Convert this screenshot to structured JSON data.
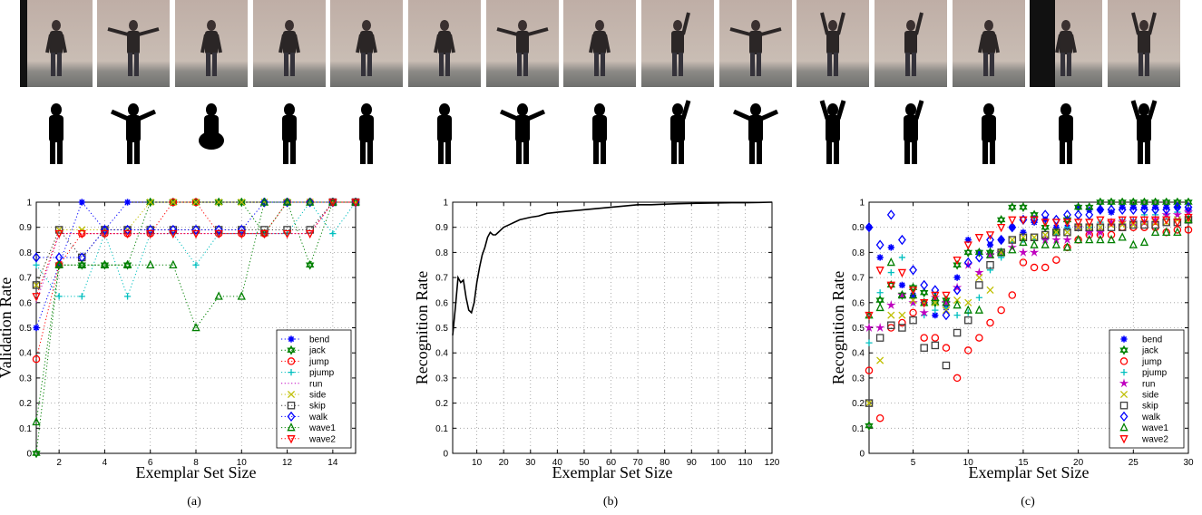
{
  "frames": {
    "count": 15,
    "names": [
      "bend",
      "jack",
      "jump",
      "pjump",
      "run",
      "side",
      "skip",
      "walk",
      "wave1",
      "wave2"
    ]
  },
  "chart_data": [
    {
      "type": "scatter",
      "caption": "(a)",
      "xlabel": "Exemplar Set Size",
      "ylabel": "Validation Rate",
      "xlim": [
        1,
        15
      ],
      "ylim": [
        0,
        1
      ],
      "xticks": [
        2,
        4,
        6,
        8,
        10,
        12,
        14
      ],
      "xtick_labels": [
        "2",
        "4",
        "6",
        "8",
        "10",
        "12",
        "14"
      ],
      "yticks": [
        0,
        0.1,
        0.2,
        0.3,
        0.4,
        0.5,
        0.6,
        0.7,
        0.8,
        0.9,
        1
      ],
      "ytick_labels": [
        "0",
        "0.1",
        "0.2",
        "0.3",
        "0.4",
        "0.5",
        "0.6",
        "0.7",
        "0.8",
        "0.9",
        "1"
      ],
      "grid": true,
      "legend": "bottom-right",
      "x": [
        1,
        2,
        3,
        4,
        5,
        6,
        7,
        8,
        9,
        10,
        11,
        12,
        13,
        14,
        15
      ],
      "series": [
        {
          "name": "bend",
          "color": "#0000ff",
          "marker": "star",
          "values": [
            0.5,
            0.75,
            1,
            0.89,
            1,
            1,
            1,
            1,
            1,
            1,
            1,
            1,
            1,
            1,
            1
          ]
        },
        {
          "name": "jack",
          "color": "#008000",
          "marker": "hexagram",
          "values": [
            0,
            0.75,
            0.75,
            0.75,
            0.75,
            1,
            1,
            1,
            1,
            1,
            0.875,
            1,
            0.75,
            1,
            1
          ]
        },
        {
          "name": "jump",
          "color": "#ff0000",
          "marker": "circle",
          "values": [
            0.375,
            0.75,
            0.875,
            0.875,
            0.875,
            0.875,
            1,
            1,
            0.875,
            0.875,
            0.875,
            1,
            1,
            1,
            1
          ]
        },
        {
          "name": "pjump",
          "color": "#00bfbf",
          "marker": "plus",
          "values": [
            0.75,
            0.625,
            0.625,
            0.875,
            0.625,
            0.875,
            0.875,
            0.75,
            0.875,
            0.875,
            0.875,
            0.875,
            1,
            0.875,
            1
          ]
        },
        {
          "name": "run",
          "color": "#bf00bf",
          "marker": "none",
          "values": [
            0.6,
            0.875,
            0.875,
            0.875,
            0.875,
            0.875,
            0.875,
            0.875,
            0.875,
            0.875,
            0.875,
            0.875,
            0.875,
            1,
            1
          ]
        },
        {
          "name": "side",
          "color": "#bfbf00",
          "marker": "x",
          "values": [
            0.67,
            0.89,
            0.89,
            0.89,
            0.89,
            1,
            1,
            1,
            1,
            1,
            1,
            1,
            1,
            1,
            1
          ]
        },
        {
          "name": "skip",
          "color": "#404040",
          "marker": "square",
          "values": [
            0.67,
            0.89,
            0.78,
            0.89,
            0.89,
            0.89,
            0.89,
            0.89,
            0.89,
            0.89,
            0.89,
            0.89,
            0.89,
            1,
            1
          ]
        },
        {
          "name": "walk",
          "color": "#0000ff",
          "marker": "diamond",
          "values": [
            0.78,
            0.78,
            0.78,
            0.89,
            0.89,
            0.89,
            0.89,
            0.89,
            0.89,
            0.89,
            1,
            1,
            1,
            1,
            1
          ]
        },
        {
          "name": "wave1",
          "color": "#008000",
          "marker": "triangle-up",
          "values": [
            0.125,
            0.75,
            0.75,
            0.75,
            0.75,
            0.75,
            0.75,
            0.5,
            0.625,
            0.625,
            1,
            1,
            1,
            1,
            1
          ]
        },
        {
          "name": "wave2",
          "color": "#ff0000",
          "marker": "triangle-down",
          "values": [
            0.625,
            0.875,
            0.875,
            0.875,
            0.875,
            0.875,
            0.875,
            0.875,
            0.875,
            0.875,
            0.875,
            0.875,
            0.875,
            1,
            1
          ]
        }
      ]
    },
    {
      "type": "line",
      "caption": "(b)",
      "xlabel": "Exemplar Set Size",
      "ylabel": "Recognition Rate",
      "xlim": [
        1,
        120
      ],
      "ylim": [
        0,
        1
      ],
      "xticks": [
        10,
        20,
        30,
        40,
        50,
        60,
        70,
        80,
        90,
        100,
        110,
        120
      ],
      "xtick_labels": [
        "10",
        "20",
        "30",
        "40",
        "50",
        "60",
        "70",
        "80",
        "90",
        "100",
        "110",
        "120"
      ],
      "yticks": [
        0,
        0.1,
        0.2,
        0.3,
        0.4,
        0.5,
        0.6,
        0.7,
        0.8,
        0.9,
        1
      ],
      "ytick_labels": [
        "0",
        "0.1",
        "0.2",
        "0.3",
        "0.4",
        "0.5",
        "0.6",
        "0.7",
        "0.8",
        "0.9",
        "1"
      ],
      "grid": true,
      "series": [
        {
          "color": "#000000",
          "x": [
            1,
            2,
            3,
            4,
            5,
            6,
            7,
            8,
            9,
            10,
            11,
            12,
            13,
            14,
            15,
            16,
            17,
            18,
            19,
            20,
            22,
            24,
            26,
            28,
            30,
            33,
            36,
            40,
            45,
            50,
            55,
            60,
            65,
            70,
            75,
            80,
            85,
            90,
            95,
            100,
            105,
            110,
            115,
            120
          ],
          "values": [
            0.47,
            0.58,
            0.7,
            0.68,
            0.69,
            0.62,
            0.57,
            0.56,
            0.6,
            0.68,
            0.74,
            0.79,
            0.82,
            0.86,
            0.88,
            0.87,
            0.87,
            0.88,
            0.89,
            0.9,
            0.91,
            0.92,
            0.93,
            0.935,
            0.94,
            0.945,
            0.955,
            0.96,
            0.965,
            0.97,
            0.975,
            0.98,
            0.985,
            0.99,
            0.99,
            0.992,
            0.994,
            0.995,
            0.996,
            0.997,
            0.998,
            0.998,
            0.999,
            1.0
          ]
        }
      ]
    },
    {
      "type": "scatter",
      "caption": "(c)",
      "xlabel": "Exemplar Set Size",
      "ylabel": "Recognition Rate",
      "xlim": [
        1,
        30
      ],
      "ylim": [
        0,
        1
      ],
      "xticks": [
        5,
        10,
        15,
        20,
        25,
        30
      ],
      "xtick_labels": [
        "5",
        "10",
        "15",
        "20",
        "25",
        "30"
      ],
      "yticks": [
        0,
        0.1,
        0.2,
        0.3,
        0.4,
        0.5,
        0.6,
        0.7,
        0.8,
        0.9,
        1
      ],
      "ytick_labels": [
        "0",
        "0.1",
        "0.2",
        "0.3",
        "0.4",
        "0.5",
        "0.6",
        "0.7",
        "0.8",
        "0.9",
        "1"
      ],
      "grid": true,
      "legend": "bottom-right",
      "x": [
        1,
        2,
        3,
        4,
        5,
        6,
        7,
        8,
        9,
        10,
        11,
        12,
        13,
        14,
        15,
        16,
        17,
        18,
        19,
        20,
        21,
        22,
        23,
        24,
        25,
        26,
        27,
        28,
        29,
        30
      ],
      "series": [
        {
          "name": "bend",
          "color": "#0000ff",
          "marker": "star",
          "values": [
            0.9,
            0.78,
            0.82,
            0.67,
            0.63,
            0.6,
            0.55,
            0.58,
            0.7,
            0.85,
            0.8,
            0.83,
            0.85,
            0.9,
            0.88,
            0.92,
            0.93,
            0.9,
            0.9,
            0.98,
            0.97,
            0.97,
            0.96,
            0.98,
            0.98,
            0.98,
            0.98,
            0.98,
            0.98,
            0.97
          ]
        },
        {
          "name": "jack",
          "color": "#008000",
          "marker": "hexagram",
          "values": [
            0.11,
            0.61,
            0.67,
            0.63,
            0.66,
            0.64,
            0.6,
            0.61,
            0.75,
            0.8,
            0.8,
            0.8,
            0.93,
            0.98,
            0.98,
            0.95,
            0.9,
            0.88,
            0.93,
            0.98,
            0.98,
            1,
            1,
            1,
            1,
            1,
            1,
            1,
            1,
            1
          ]
        },
        {
          "name": "jump",
          "color": "#ff0000",
          "marker": "circle",
          "values": [
            0.33,
            0.14,
            0.5,
            0.52,
            0.56,
            0.46,
            0.46,
            0.42,
            0.3,
            0.41,
            0.46,
            0.52,
            0.57,
            0.63,
            0.76,
            0.74,
            0.74,
            0.77,
            0.82,
            0.85,
            0.87,
            0.87,
            0.87,
            0.9,
            0.9,
            0.9,
            0.9,
            0.88,
            0.89,
            0.89
          ]
        },
        {
          "name": "pjump",
          "color": "#00bfbf",
          "marker": "plus",
          "values": [
            0.44,
            0.64,
            0.72,
            0.78,
            0.6,
            0.55,
            0.57,
            0.58,
            0.55,
            0.56,
            0.62,
            0.73,
            0.78,
            0.84,
            0.85,
            0.85,
            0.85,
            0.87,
            0.9,
            0.9,
            0.9,
            0.92,
            0.92,
            0.93,
            0.93,
            0.95,
            0.95,
            0.95,
            0.96,
            0.96
          ]
        },
        {
          "name": "run",
          "color": "#bf00bf",
          "marker": "star5",
          "values": [
            0.5,
            0.5,
            0.59,
            0.63,
            0.6,
            0.56,
            0.62,
            0.6,
            0.66,
            0.75,
            0.72,
            0.79,
            0.8,
            0.82,
            0.8,
            0.8,
            0.85,
            0.85,
            0.85,
            0.9,
            0.88,
            0.88,
            0.92,
            0.92,
            0.92,
            0.92,
            0.93,
            0.95,
            0.95,
            0.96
          ]
        },
        {
          "name": "side",
          "color": "#bfbf00",
          "marker": "x",
          "values": [
            0.2,
            0.37,
            0.55,
            0.55,
            0.61,
            0.6,
            0.6,
            0.57,
            0.61,
            0.6,
            0.7,
            0.65,
            0.8,
            0.85,
            0.86,
            0.86,
            0.87,
            0.88,
            0.88,
            0.9,
            0.9,
            0.9,
            0.91,
            0.91,
            0.91,
            0.92,
            0.92,
            0.92,
            0.93,
            0.93
          ]
        },
        {
          "name": "skip",
          "color": "#404040",
          "marker": "square",
          "values": [
            0.2,
            0.46,
            0.51,
            0.5,
            0.53,
            0.42,
            0.43,
            0.35,
            0.48,
            0.53,
            0.67,
            0.75,
            0.8,
            0.85,
            0.86,
            0.86,
            0.87,
            0.88,
            0.88,
            0.9,
            0.9,
            0.9,
            0.9,
            0.9,
            0.91,
            0.91,
            0.91,
            0.92,
            0.92,
            0.93
          ]
        },
        {
          "name": "walk",
          "color": "#0000ff",
          "marker": "diamond",
          "values": [
            0.9,
            0.83,
            0.95,
            0.85,
            0.73,
            0.67,
            0.65,
            0.55,
            0.65,
            0.76,
            0.78,
            0.85,
            0.85,
            0.9,
            0.93,
            0.93,
            0.95,
            0.93,
            0.95,
            0.95,
            0.95,
            0.97,
            0.97,
            0.97,
            0.97,
            0.97,
            0.97,
            0.97,
            0.98,
            0.98
          ]
        },
        {
          "name": "wave1",
          "color": "#008000",
          "marker": "triangle-up",
          "values": [
            0.55,
            0.58,
            0.76,
            0.63,
            0.63,
            0.6,
            0.62,
            0.6,
            0.59,
            0.57,
            0.57,
            0.79,
            0.8,
            0.81,
            0.84,
            0.83,
            0.83,
            0.83,
            0.82,
            0.85,
            0.85,
            0.85,
            0.85,
            0.86,
            0.83,
            0.84,
            0.88,
            0.88,
            0.88,
            0.93
          ]
        },
        {
          "name": "wave2",
          "color": "#ff0000",
          "marker": "triangle-down",
          "values": [
            0.55,
            0.73,
            0.67,
            0.72,
            0.65,
            0.6,
            0.63,
            0.63,
            0.77,
            0.83,
            0.86,
            0.87,
            0.9,
            0.93,
            0.93,
            0.93,
            0.92,
            0.92,
            0.92,
            0.92,
            0.92,
            0.93,
            0.92,
            0.93,
            0.93,
            0.93,
            0.93,
            0.93,
            0.92,
            0.94
          ]
        }
      ]
    }
  ]
}
